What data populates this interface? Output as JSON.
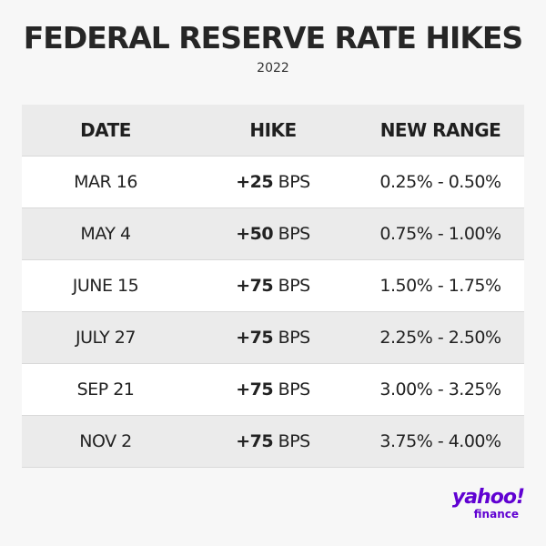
{
  "title": "FEDERAL RESERVE RATE HIKES",
  "subtitle": "2022",
  "table": {
    "headers": [
      "DATE",
      "HIKE",
      "NEW RANGE"
    ],
    "rows": [
      {
        "date": "MAR 16",
        "hike_value": "+25",
        "hike_unit": " BPS",
        "range": "0.25% - 0.50%"
      },
      {
        "date": "MAY 4",
        "hike_value": "+50",
        "hike_unit": " BPS",
        "range": "0.75% - 1.00%"
      },
      {
        "date": "JUNE 15",
        "hike_value": "+75",
        "hike_unit": " BPS",
        "range": "1.50% - 1.75%"
      },
      {
        "date": "JULY 27",
        "hike_value": "+75",
        "hike_unit": " BPS",
        "range": "2.25% - 2.50%"
      },
      {
        "date": "SEP 21",
        "hike_value": "+75",
        "hike_unit": " BPS",
        "range": "3.00% - 3.25%"
      },
      {
        "date": "NOV 2",
        "hike_value": "+75",
        "hike_unit": " BPS",
        "range": "3.75% - 4.00%"
      }
    ]
  },
  "logo": {
    "primary": "yahoo!",
    "secondary": "finance",
    "color": "#6001d2"
  }
}
